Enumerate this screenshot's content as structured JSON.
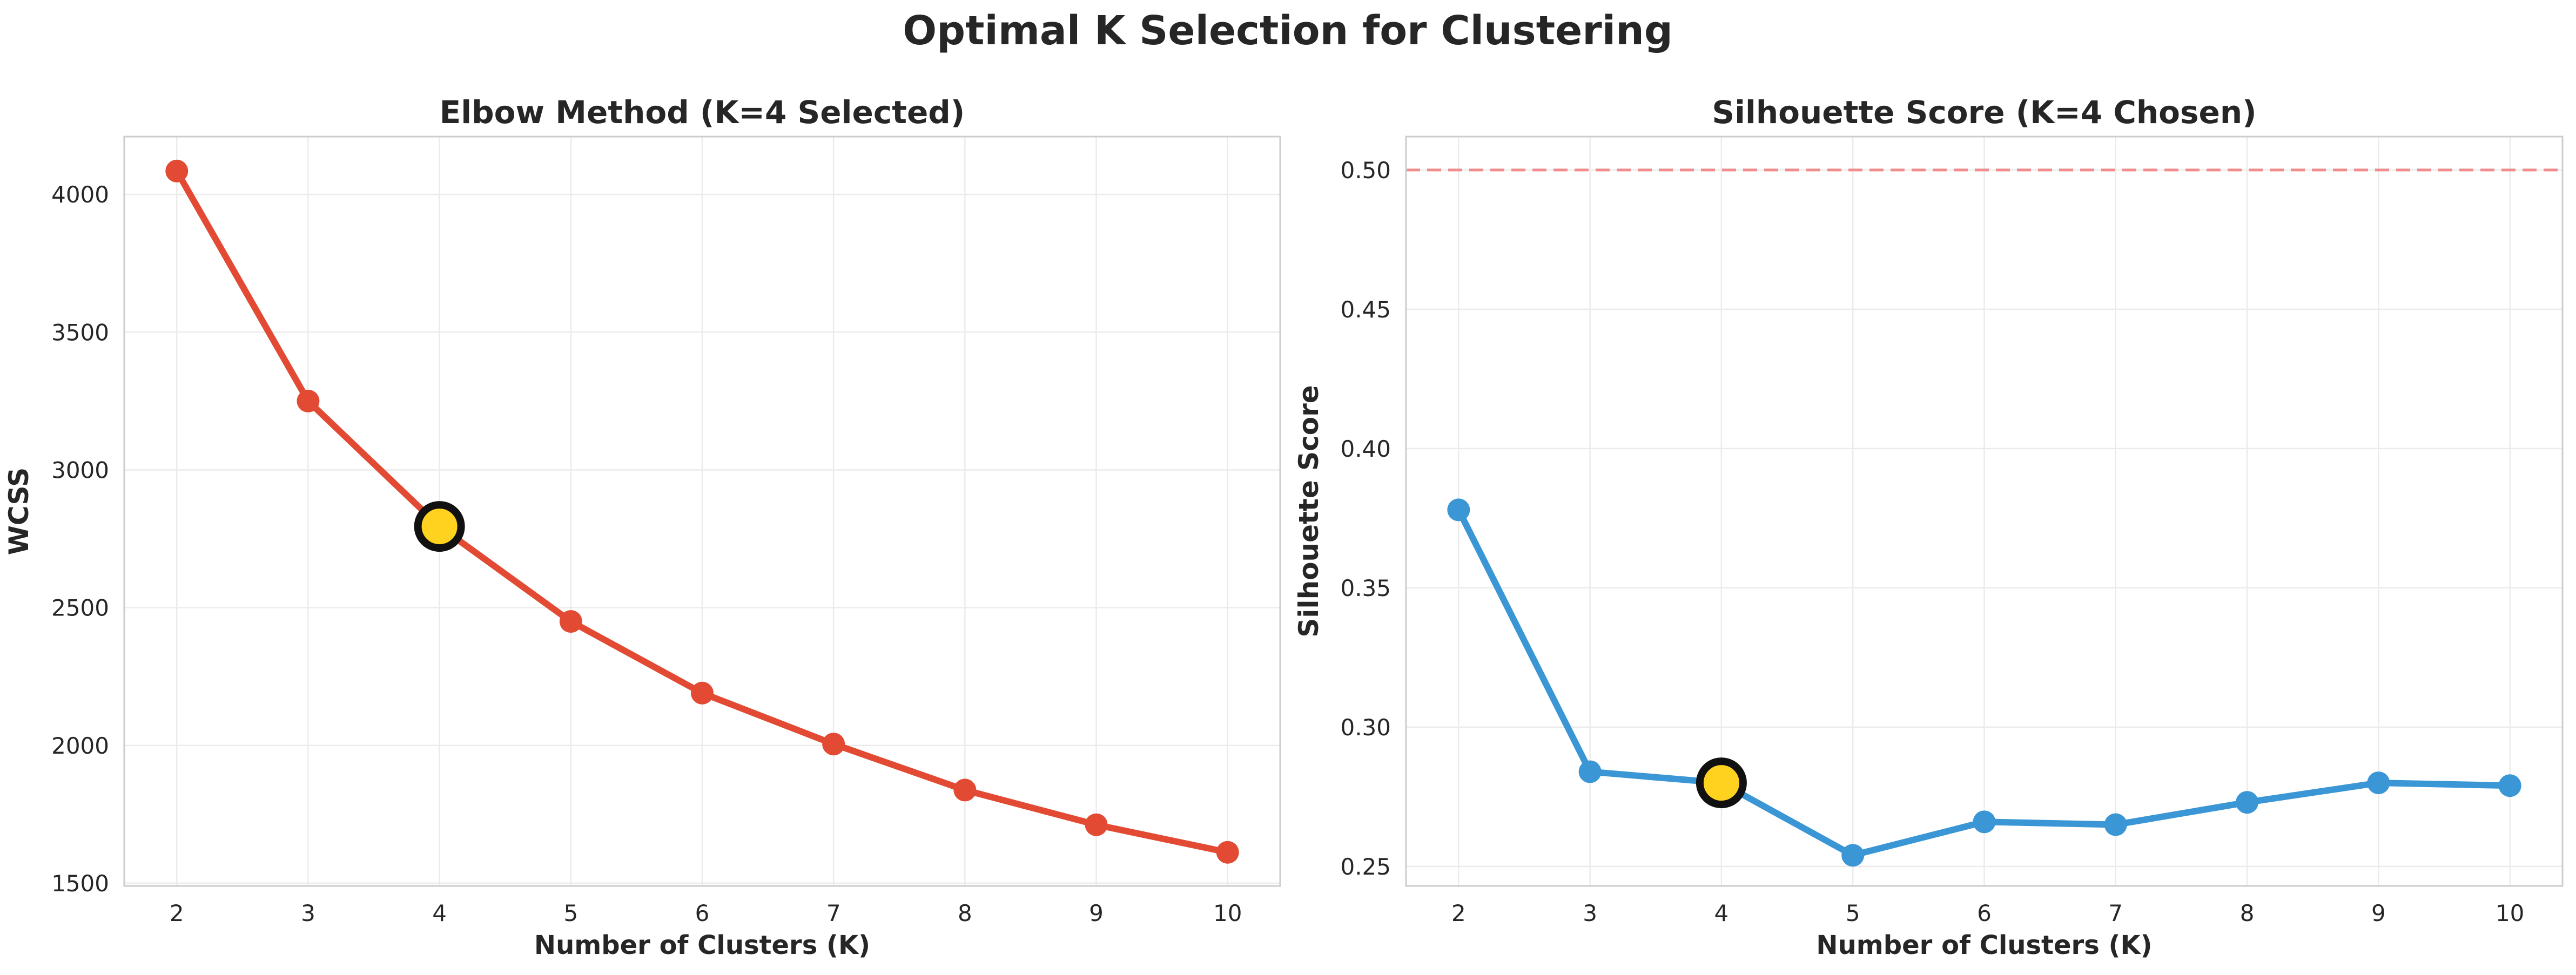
{
  "figure_title": "Optimal K Selection for Clustering",
  "colors": {
    "elbow_line": "#E24A33",
    "silhouette_line": "#3A96D4",
    "highlight_fill": "#FFD21F",
    "highlight_edge": "#111111",
    "reference_line": "#F08C8C",
    "grid": "#EBEBEB",
    "axes_edge": "#CCCCCC"
  },
  "chart_data": [
    {
      "type": "line",
      "title": "Elbow Method (K=4 Selected)",
      "xlabel": "Number of Clusters (K)",
      "ylabel": "WCSS",
      "x": [
        2,
        3,
        4,
        5,
        6,
        7,
        8,
        9,
        10
      ],
      "series": [
        {
          "values": [
            4085,
            3250,
            2795,
            2450,
            2190,
            2005,
            1838,
            1712,
            1612
          ]
        }
      ],
      "highlight": {
        "x": 4,
        "y": 2795
      },
      "xlim": [
        1.6,
        10.4
      ],
      "ylim": [
        1490,
        4210
      ],
      "yticks": [
        1500,
        2000,
        2500,
        3000,
        3500,
        4000
      ],
      "ytick_labels": [
        "1500",
        "2000",
        "2500",
        "3000",
        "3500",
        "4000"
      ],
      "xticks": [
        2,
        3,
        4,
        5,
        6,
        7,
        8,
        9,
        10
      ],
      "grid": true
    },
    {
      "type": "line",
      "title": "Silhouette Score (K=4 Chosen)",
      "xlabel": "Number of Clusters (K)",
      "ylabel": "Silhouette Score",
      "x": [
        2,
        3,
        4,
        5,
        6,
        7,
        8,
        9,
        10
      ],
      "series": [
        {
          "values": [
            0.378,
            0.284,
            0.28,
            0.254,
            0.266,
            0.265,
            0.273,
            0.28,
            0.279
          ]
        }
      ],
      "highlight": {
        "x": 4,
        "y": 0.28
      },
      "reference_line": {
        "y": 0.5,
        "style": "dashed"
      },
      "xlim": [
        1.6,
        10.4
      ],
      "ylim": [
        0.243,
        0.512
      ],
      "yticks": [
        0.25,
        0.3,
        0.35,
        0.4,
        0.45,
        0.5
      ],
      "ytick_labels": [
        "0.25",
        "0.30",
        "0.35",
        "0.40",
        "0.45",
        "0.50"
      ],
      "xticks": [
        2,
        3,
        4,
        5,
        6,
        7,
        8,
        9,
        10
      ],
      "grid": true
    }
  ]
}
